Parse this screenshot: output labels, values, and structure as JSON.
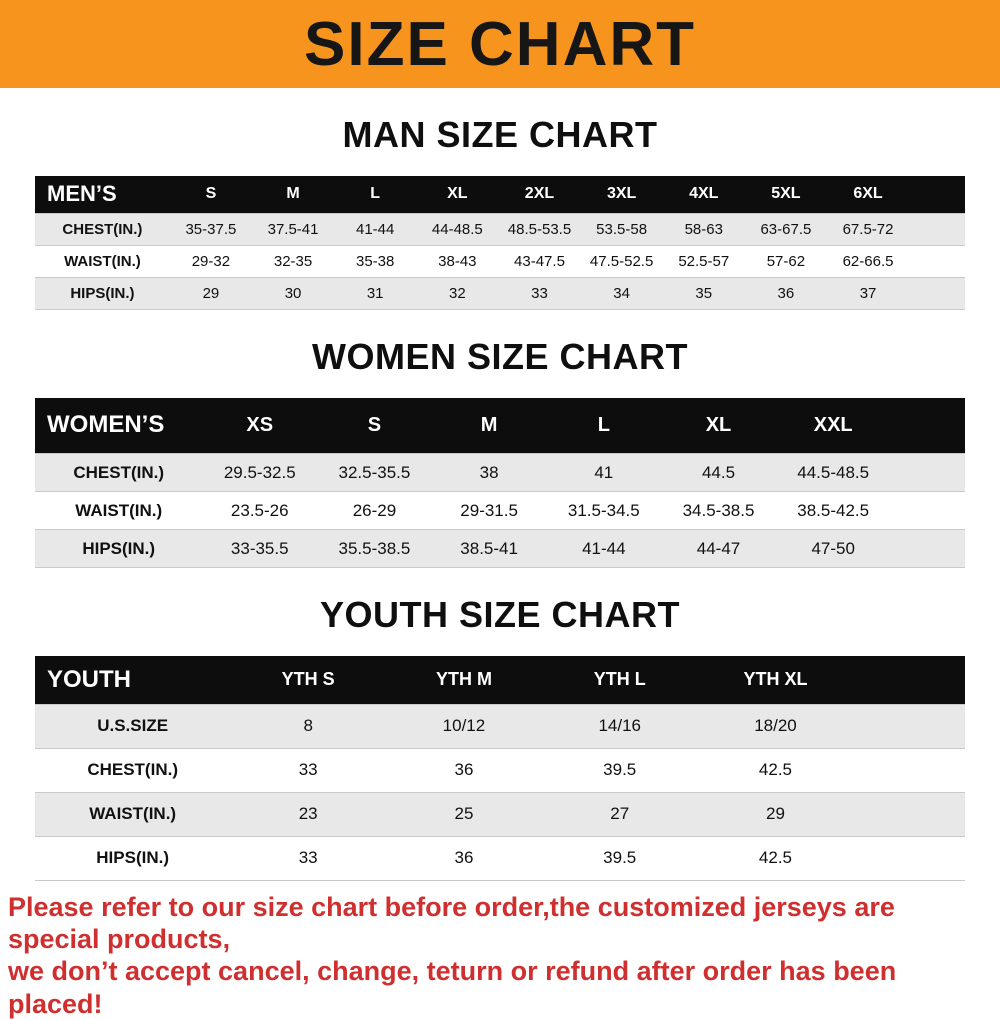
{
  "banner": {
    "title": "SIZE CHART",
    "bg_color": "#f7941e",
    "text_color": "#161616"
  },
  "chart_data": [
    {
      "type": "table",
      "title": "MAN SIZE CHART",
      "columns": [
        "MEN’S",
        "S",
        "M",
        "L",
        "XL",
        "2XL",
        "3XL",
        "4XL",
        "5XL",
        "6XL"
      ],
      "rows": [
        [
          "CHEST(IN.)",
          "35-37.5",
          "37.5-41",
          "41-44",
          "44-48.5",
          "48.5-53.5",
          "53.5-58",
          "58-63",
          "63-67.5",
          "67.5-72"
        ],
        [
          "WAIST(IN.)",
          "29-32",
          "32-35",
          "35-38",
          "38-43",
          "43-47.5",
          "47.5-52.5",
          "52.5-57",
          "57-62",
          "62-66.5"
        ],
        [
          "HIPS(IN.)",
          "29",
          "30",
          "31",
          "32",
          "33",
          "34",
          "35",
          "36",
          "37"
        ]
      ],
      "layout": {
        "label_col_pct": 14.5,
        "trailing_pct": 6,
        "header_bg": "#0d0d0d",
        "shade_bg": "#e8e8e8"
      }
    },
    {
      "type": "table",
      "title": "WOMEN SIZE CHART",
      "columns": [
        "WOMEN’S",
        "XS",
        "S",
        "M",
        "L",
        "XL",
        "XXL"
      ],
      "rows": [
        [
          "CHEST(IN.)",
          "29.5-32.5",
          "32.5-35.5",
          "38",
          "41",
          "44.5",
          "44.5-48.5"
        ],
        [
          "WAIST(IN.)",
          "23.5-26",
          "26-29",
          "29-31.5",
          "31.5-34.5",
          "34.5-38.5",
          "38.5-42.5"
        ],
        [
          "HIPS(IN.)",
          "33-35.5",
          "35.5-38.5",
          "38.5-41",
          "41-44",
          "44-47",
          "47-50"
        ]
      ],
      "layout": {
        "label_col_pct": 18,
        "trailing_pct": 8,
        "header_bg": "#0d0d0d",
        "shade_bg": "#e8e8e8"
      }
    },
    {
      "type": "table",
      "title": "YOUTH SIZE CHART",
      "columns": [
        "YOUTH",
        "YTH S",
        "YTH M",
        "YTH L",
        "YTH XL"
      ],
      "rows": [
        [
          "U.S.SIZE",
          "8",
          "10/12",
          "14/16",
          "18/20"
        ],
        [
          "CHEST(IN.)",
          "33",
          "36",
          "39.5",
          "42.5"
        ],
        [
          "WAIST(IN.)",
          "23",
          "25",
          "27",
          "29"
        ],
        [
          "HIPS(IN.)",
          "33",
          "36",
          "39.5",
          "42.5"
        ]
      ],
      "layout": {
        "label_col_pct": 21,
        "trailing_pct": 12,
        "header_bg": "#0d0d0d",
        "shade_bg": "#e8e8e8"
      }
    }
  ],
  "footer": {
    "line1": "Please refer to our size chart before order,the customized jerseys are special products,",
    "line2": "we don’t accept cancel, change, teturn or refund after order has been placed!",
    "text_color": "#d02f2f"
  }
}
